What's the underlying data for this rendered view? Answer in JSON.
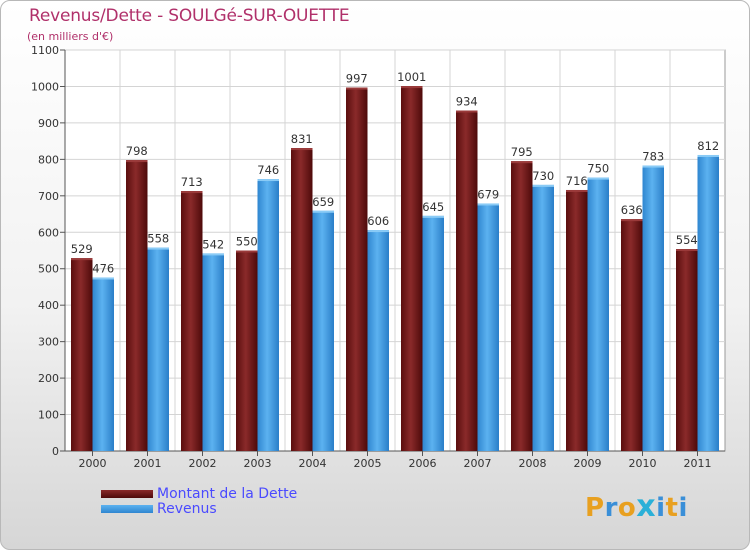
{
  "title": "Revenus/Dette - SOULGé-SUR-OUETTE",
  "subtitle": "(en milliers d'€)",
  "colors": {
    "dette": "#6e1a1a",
    "revenus": "#4aa3e8",
    "title": "#b0306a",
    "legend_text": "#4a4aff"
  },
  "legend": [
    {
      "label": "Montant de la Dette"
    },
    {
      "label": "Revenus"
    }
  ],
  "logo": {
    "text": "Proxiti",
    "letters": [
      "P",
      "r",
      "o",
      "x",
      "i",
      "t",
      "i"
    ],
    "colors": [
      "#e8a020",
      "#3a8fd8",
      "#e8a020",
      "#2ab0d8",
      "#3a8fd8",
      "#e8a020",
      "#3a8fd8"
    ]
  },
  "chart_data": {
    "type": "bar",
    "title": "Revenus/Dette - SOULGé-SUR-OUETTE",
    "subtitle": "(en milliers d'€)",
    "categories": [
      "2000",
      "2001",
      "2002",
      "2003",
      "2004",
      "2005",
      "2006",
      "2007",
      "2008",
      "2009",
      "2010",
      "2011"
    ],
    "series": [
      {
        "name": "Montant de la Dette",
        "values": [
          529,
          798,
          713,
          550,
          831,
          997,
          1001,
          934,
          795,
          716,
          636,
          554
        ]
      },
      {
        "name": "Revenus",
        "values": [
          476,
          558,
          542,
          746,
          659,
          606,
          645,
          679,
          730,
          750,
          783,
          812
        ]
      }
    ],
    "ylim": [
      0,
      1100
    ],
    "yticks": [
      0,
      100,
      200,
      300,
      400,
      500,
      600,
      700,
      800,
      900,
      1000,
      1100
    ],
    "grid": true,
    "legend_position": "bottom-left"
  }
}
